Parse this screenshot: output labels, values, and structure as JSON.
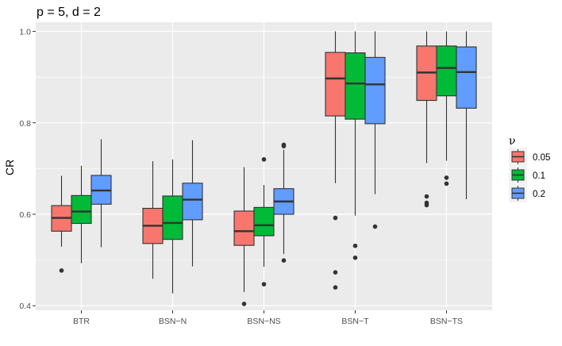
{
  "chart_data": {
    "type": "boxplot",
    "title": "p = 5, d = 2",
    "xlabel": "",
    "ylabel": "CR",
    "ylim": [
      0.39,
      1.02
    ],
    "yticks": [
      0.4,
      0.6,
      0.8,
      1.0
    ],
    "ytick_labels": [
      "0.4",
      "0.6",
      "0.8",
      "1.0"
    ],
    "grid": true,
    "legend": {
      "title": "ν",
      "position": "right"
    },
    "categories": [
      "BTR",
      "BSN−N",
      "BSN−NS",
      "BSN−T",
      "BSN−TS"
    ],
    "series": [
      {
        "name": "0.05",
        "color": "#F8766D",
        "boxes": [
          {
            "lower": 0.529,
            "q1": 0.563,
            "median": 0.592,
            "q3": 0.619,
            "upper": 0.684,
            "outliers": [
              0.477
            ]
          },
          {
            "lower": 0.459,
            "q1": 0.536,
            "median": 0.575,
            "q3": 0.613,
            "upper": 0.716,
            "outliers": []
          },
          {
            "lower": 0.43,
            "q1": 0.532,
            "median": 0.563,
            "q3": 0.607,
            "upper": 0.703,
            "outliers": [
              0.404
            ]
          },
          {
            "lower": 0.668,
            "q1": 0.815,
            "median": 0.897,
            "q3": 0.954,
            "upper": 1.0,
            "outliers": [
              0.592,
              0.473,
              0.44
            ]
          },
          {
            "lower": 0.712,
            "q1": 0.849,
            "median": 0.91,
            "q3": 0.968,
            "upper": 1.0,
            "outliers": [
              0.639,
              0.625,
              0.62
            ]
          }
        ]
      },
      {
        "name": "0.1",
        "color": "#00BA38",
        "boxes": [
          {
            "lower": 0.493,
            "q1": 0.58,
            "median": 0.606,
            "q3": 0.641,
            "upper": 0.706,
            "outliers": []
          },
          {
            "lower": 0.427,
            "q1": 0.545,
            "median": 0.581,
            "q3": 0.64,
            "upper": 0.72,
            "outliers": []
          },
          {
            "lower": 0.485,
            "q1": 0.553,
            "median": 0.576,
            "q3": 0.615,
            "upper": 0.664,
            "outliers": [
              0.72,
              0.447
            ]
          },
          {
            "lower": 0.597,
            "q1": 0.808,
            "median": 0.886,
            "q3": 0.953,
            "upper": 1.0,
            "outliers": [
              0.531,
              0.505
            ]
          },
          {
            "lower": 0.717,
            "q1": 0.859,
            "median": 0.92,
            "q3": 0.968,
            "upper": 1.0,
            "outliers": [
              0.68,
              0.667
            ]
          }
        ]
      },
      {
        "name": "0.2",
        "color": "#619CFF",
        "boxes": [
          {
            "lower": 0.528,
            "q1": 0.622,
            "median": 0.652,
            "q3": 0.685,
            "upper": 0.764,
            "outliers": []
          },
          {
            "lower": 0.486,
            "q1": 0.588,
            "median": 0.632,
            "q3": 0.668,
            "upper": 0.762,
            "outliers": []
          },
          {
            "lower": 0.513,
            "q1": 0.6,
            "median": 0.628,
            "q3": 0.656,
            "upper": 0.741,
            "outliers": [
              0.752,
              0.749,
              0.499
            ]
          },
          {
            "lower": 0.644,
            "q1": 0.798,
            "median": 0.884,
            "q3": 0.943,
            "upper": 1.0,
            "outliers": [
              0.573
            ]
          },
          {
            "lower": 0.633,
            "q1": 0.832,
            "median": 0.911,
            "q3": 0.966,
            "upper": 1.0,
            "outliers": []
          }
        ]
      }
    ]
  }
}
